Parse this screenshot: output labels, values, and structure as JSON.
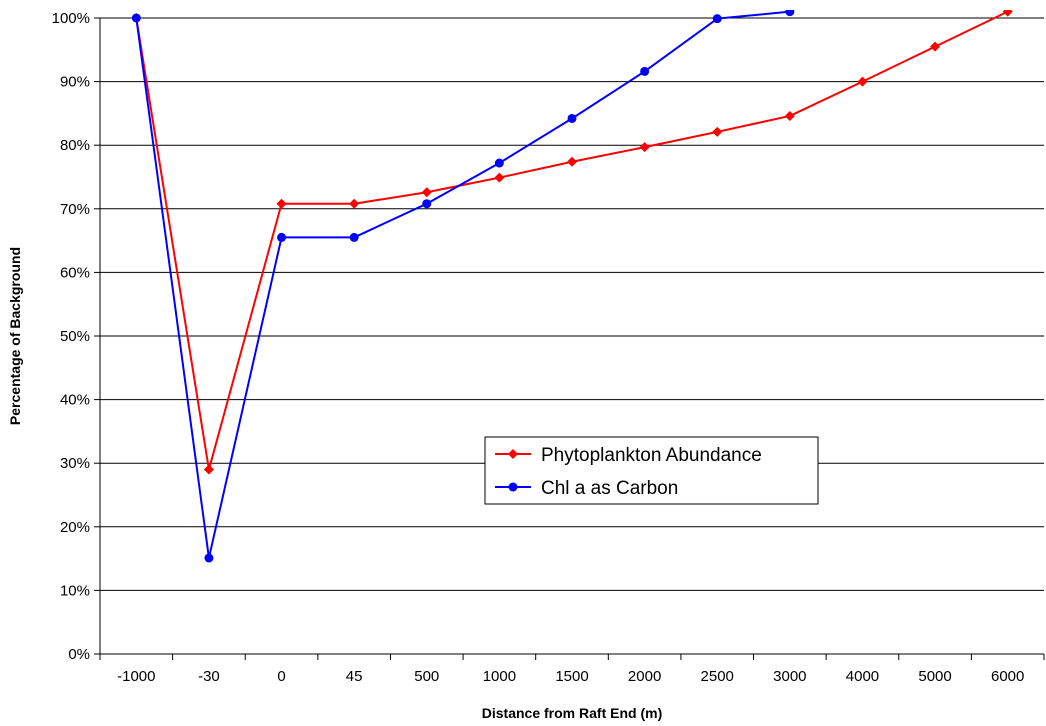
{
  "chart_data": {
    "type": "line",
    "xlabel": "Distance from Raft End (m)",
    "ylabel": "Percentage of Background",
    "categories": [
      "-1000",
      "-30",
      "0",
      "45",
      "500",
      "1000",
      "1500",
      "2000",
      "2500",
      "3000",
      "4000",
      "5000",
      "6000"
    ],
    "y_ticks": [
      "0%",
      "10%",
      "20%",
      "30%",
      "40%",
      "50%",
      "60%",
      "70%",
      "80%",
      "90%",
      "100%"
    ],
    "ylim": [
      0,
      100
    ],
    "grid": "horizontal",
    "legend_position": "center-right",
    "series": [
      {
        "name": "Phytoplankton Abundance",
        "color": "#ff0000",
        "marker": "diamond",
        "values": [
          100,
          29,
          70.8,
          70.8,
          72.6,
          74.9,
          77.4,
          79.7,
          82.1,
          84.6,
          90.0,
          95.5,
          101
        ]
      },
      {
        "name": "Chl a as Carbon",
        "color": "#0000ff",
        "marker": "circle",
        "values": [
          100,
          15.1,
          65.5,
          65.5,
          70.8,
          77.2,
          84.2,
          91.6,
          99.9,
          101,
          null,
          null,
          null
        ]
      }
    ]
  }
}
